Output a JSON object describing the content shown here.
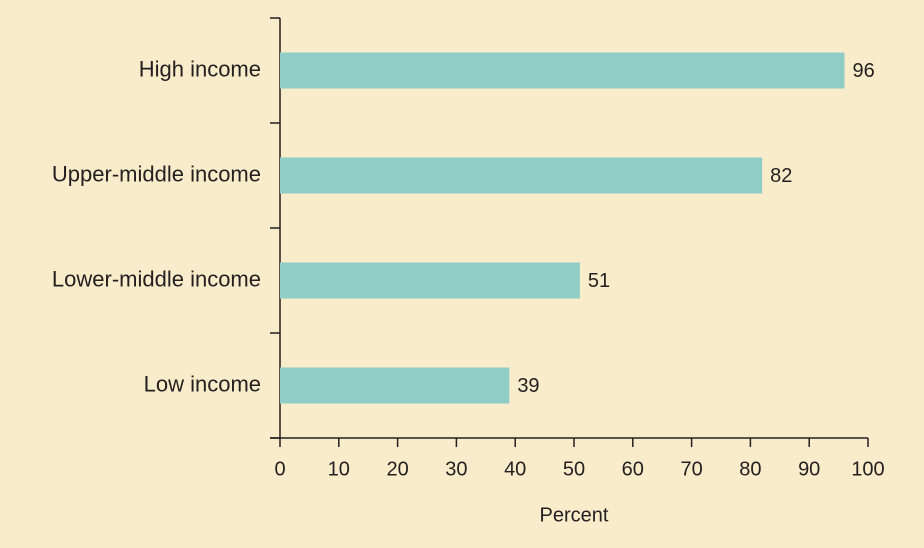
{
  "chart_data": {
    "type": "bar",
    "orientation": "horizontal",
    "categories": [
      "High income",
      "Upper-middle income",
      "Lower-middle income",
      "Low income"
    ],
    "values": [
      96,
      82,
      51,
      39
    ],
    "color": "#8fcdc6",
    "xlim": [
      0,
      100
    ],
    "xticks": [
      0,
      10,
      20,
      30,
      40,
      50,
      60,
      70,
      80,
      90,
      100
    ],
    "x_label": "Percent"
  }
}
